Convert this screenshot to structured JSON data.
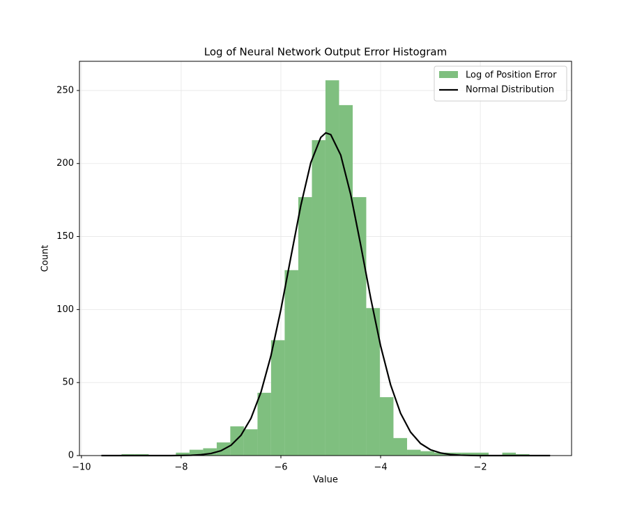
{
  "chart_data": {
    "type": "histogram",
    "title": "Log of Neural Network Output Error Histogram",
    "xlabel": "Value",
    "ylabel": "Count",
    "name": "Log of Position Error",
    "color": "#7fbf7f",
    "bins": [
      -9.469,
      -9.196,
      -8.924,
      -8.651,
      -8.378,
      -8.106,
      -7.833,
      -7.56,
      -7.287,
      -7.015,
      -6.742,
      -6.469,
      -6.197,
      -5.924,
      -5.651,
      -5.378,
      -5.106,
      -4.833,
      -4.56,
      -4.288,
      -4.015,
      -3.742,
      -3.469,
      -3.197,
      -2.924,
      -2.651,
      -2.378,
      -2.106,
      -1.833,
      -1.56,
      -1.288,
      -1.015,
      -0.742
    ],
    "counts": [
      0,
      1,
      1,
      0,
      0,
      2,
      4,
      5,
      9,
      20,
      18,
      43,
      79,
      127,
      177,
      216,
      257,
      240,
      177,
      101,
      40,
      12,
      4,
      3,
      2,
      2,
      2,
      2,
      0,
      2,
      1,
      0
    ],
    "line": {
      "name": "Normal Distribution",
      "color": "#000000",
      "x": [
        -9.6,
        -8.2,
        -8.0,
        -7.8,
        -7.6,
        -7.4,
        -7.2,
        -7.0,
        -6.8,
        -6.6,
        -6.4,
        -6.2,
        -6.0,
        -5.8,
        -5.6,
        -5.4,
        -5.2,
        -5.1,
        -5.0,
        -4.8,
        -4.6,
        -4.4,
        -4.2,
        -4.0,
        -3.8,
        -3.6,
        -3.4,
        -3.2,
        -3.0,
        -2.8,
        -2.6,
        -2.4,
        -2.2,
        -2.0,
        -0.6
      ],
      "values": [
        0,
        0,
        0.1,
        0.22,
        0.59,
        1.46,
        3.33,
        7.08,
        13.9,
        25.5,
        43.4,
        68.3,
        100.0,
        135.9,
        171.3,
        200.6,
        217.9,
        221.0,
        219.8,
        205.8,
        178.8,
        144.3,
        108.0,
        75.1,
        48.5,
        29.0,
        16.1,
        8.3,
        4.0,
        1.8,
        0.73,
        0.28,
        0.1,
        0,
        0
      ]
    },
    "xlim": [
      -10.04,
      -0.17
    ],
    "ylim": [
      0,
      270
    ],
    "xticks": [
      {
        "value": -10,
        "label": "−10"
      },
      {
        "value": -8,
        "label": "−8"
      },
      {
        "value": -6,
        "label": "−6"
      },
      {
        "value": -4,
        "label": "−4"
      },
      {
        "value": -2,
        "label": "−2"
      }
    ],
    "yticks": [
      0,
      50,
      100,
      150,
      200,
      250
    ],
    "grid": true,
    "legend": "upper right"
  }
}
